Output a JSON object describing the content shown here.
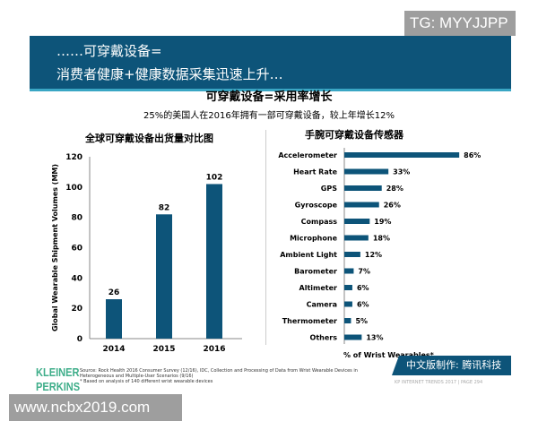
{
  "watermark_top": "TG: MYYJJPP",
  "watermark_bottom": "www.ncbx2019.com",
  "banner": {
    "line1": "……可穿戴设备=",
    "line2": "消费者健康+健康数据采集迅速上升…"
  },
  "title": "可穿戴设备=采用率增长",
  "subtitle": "25%的美国人在2016年拥有一部可穿戴设备，较上年增长12%",
  "colors": {
    "bar": "#0d5479",
    "banner": "#0d5479",
    "logo": "#3fae8a"
  },
  "chart_data": [
    {
      "type": "bar",
      "title": "全球可穿戴设备出货量对比图",
      "ylabel": "Global Wearable Shipment Volumes (MM)",
      "xlabel": "",
      "categories": [
        "2014",
        "2015",
        "2016"
      ],
      "values": [
        26,
        82,
        102
      ],
      "ylim": [
        0,
        120
      ],
      "yticks": [
        0,
        20,
        40,
        60,
        80,
        100,
        120
      ],
      "grid": false
    },
    {
      "type": "bar",
      "orientation": "horizontal",
      "title": "手腕可穿戴设备传感器",
      "xlabel": "% of Wrist Wearables*",
      "categories": [
        "Accelerometer",
        "Heart Rate",
        "GPS",
        "Gyroscope",
        "Compass",
        "Microphone",
        "Ambient Light",
        "Barometer",
        "Altimeter",
        "Camera",
        "Thermometer",
        "Others"
      ],
      "values": [
        86,
        33,
        28,
        26,
        19,
        18,
        12,
        7,
        6,
        6,
        5,
        13
      ],
      "unit": "%",
      "grid": false
    }
  ],
  "footer": {
    "logo": "KLEINER PERKINS",
    "source": "Source: Rock Health 2016 Consumer Survey (12/16), IDC, Collection and Processing of Data from Wrist Wearable Devices in Heterogeneous and Multiple-User Scenarios (9/16)",
    "note": "* Based on analysis of 140 different wrist wearable devices",
    "credit": "中文版制作: 腾讯科技",
    "page": "KP INTERNET TRENDS 2017  |  PAGE 294"
  }
}
